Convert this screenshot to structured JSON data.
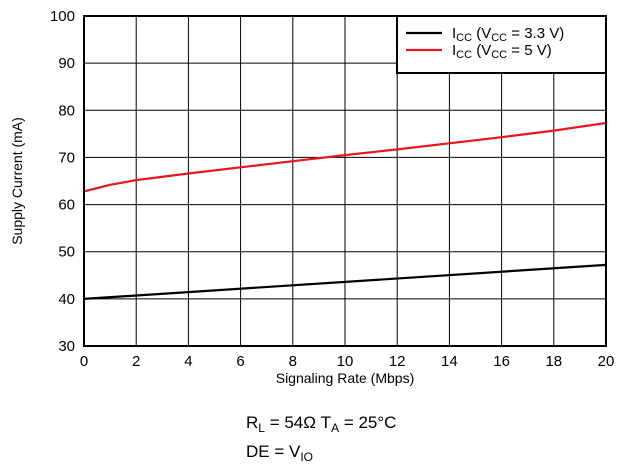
{
  "chart_data": {
    "type": "line",
    "xlabel": "Signaling Rate (Mbps)",
    "ylabel": "Supply Current (mA)",
    "xlim": [
      0,
      20
    ],
    "ylim": [
      30,
      100
    ],
    "xticks": [
      0,
      2,
      4,
      6,
      8,
      10,
      12,
      14,
      16,
      18,
      20
    ],
    "yticks": [
      30,
      40,
      50,
      60,
      70,
      80,
      90,
      100
    ],
    "grid": true,
    "legend_position": "top-right",
    "series": [
      {
        "name": "I_CC (V_CC = 3.3 V)",
        "legend": {
          "main": "I",
          "sub": "CC",
          "mid": " (V",
          "sub2": "CC",
          "tail": " = 3.3 V)"
        },
        "color": "#000000",
        "x": [
          0,
          20
        ],
        "y": [
          40,
          47.2
        ]
      },
      {
        "name": "I_CC (V_CC = 5 V)",
        "legend": {
          "main": "I",
          "sub": "CC",
          "mid": " (V",
          "sub2": "CC",
          "tail": " = 5 V)"
        },
        "color": "#e8161e",
        "x": [
          0,
          1,
          2,
          4,
          6,
          8,
          10,
          12,
          14,
          16,
          18,
          20
        ],
        "y": [
          62.8,
          64.2,
          65.2,
          66.6,
          67.9,
          69.2,
          70.5,
          71.7,
          73.0,
          74.3,
          75.7,
          77.3
        ]
      }
    ],
    "notes": [
      {
        "parts": [
          {
            "t": "R"
          },
          {
            "t": "L",
            "sub": true
          },
          {
            "t": " = 54Ω  T"
          },
          {
            "t": "A",
            "sub": true
          },
          {
            "t": " = 25°C"
          }
        ]
      },
      {
        "parts": [
          {
            "t": "DE = V"
          },
          {
            "t": "IO",
            "sub": true
          }
        ]
      }
    ]
  }
}
